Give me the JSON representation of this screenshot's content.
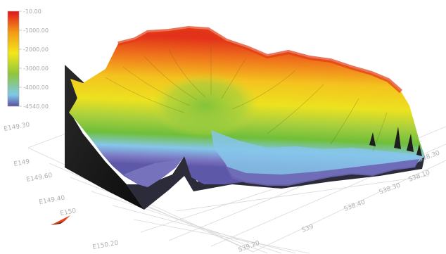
{
  "chart_data": {
    "type": "surface-3d",
    "title": "",
    "xlabel": "",
    "ylabel": "",
    "zlabel": "",
    "grid": true,
    "colorbar": {
      "placement": "top-left",
      "tick_labels": [
        "-10.00",
        "-1000.00",
        "-2000.00",
        "-3000.00",
        "-4000.00",
        "-4540.00"
      ],
      "stops": [
        {
          "value": -10,
          "color": "#e0141c"
        },
        {
          "value": -1000,
          "color": "#f39a16"
        },
        {
          "value": -2000,
          "color": "#f3e61a"
        },
        {
          "value": -3000,
          "color": "#8fc63c"
        },
        {
          "value": -4000,
          "color": "#7ec8e8"
        },
        {
          "value": -4540,
          "color": "#5a4ea2"
        }
      ]
    },
    "longitude_ticks": [
      "E149.30",
      "E149",
      "E149.60",
      "E149.40",
      "E150",
      "E150.20"
    ],
    "latitude_ticks": [
      "S38.30",
      "S38.10",
      "S38.30",
      "S38.40",
      "S39",
      "S39.20"
    ],
    "colors": {
      "ridge": "#ee3a14",
      "slope": "#f6d21c",
      "shelf": "#9ad04a",
      "deep": "#86c6ea",
      "floor": "#6e62b2",
      "side": "#161616"
    }
  }
}
